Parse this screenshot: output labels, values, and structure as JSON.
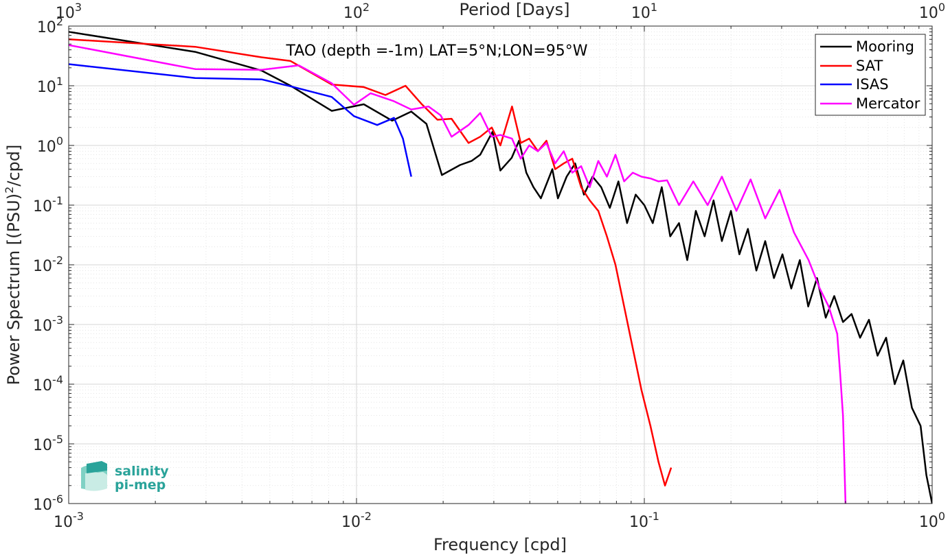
{
  "chart_data": {
    "type": "line",
    "title": "TAO (depth =-1m) LAT=5°N;LON=95°W",
    "xlabel": "Frequency [cpd]",
    "ylabel": "Power Spectrum [(PSU)²/cpd]",
    "ylabel_main": "Power Spectrum [(PSU)",
    "ylabel_sup": "2",
    "ylabel_end": "/cpd]",
    "top_xlabel": "Period [Days]",
    "xscale": "log",
    "yscale": "log",
    "xlim": [
      0.001,
      1
    ],
    "ylim": [
      1e-06,
      100
    ],
    "grid": true,
    "legend_position": "top-right",
    "x_ticks": [
      {
        "base": "10",
        "exp": "-3"
      },
      {
        "base": "10",
        "exp": "-2"
      },
      {
        "base": "10",
        "exp": "-1"
      },
      {
        "base": "10",
        "exp": "0"
      }
    ],
    "y_ticks": [
      {
        "base": "10",
        "exp": "-6"
      },
      {
        "base": "10",
        "exp": "-5"
      },
      {
        "base": "10",
        "exp": "-4"
      },
      {
        "base": "10",
        "exp": "-3"
      },
      {
        "base": "10",
        "exp": "-2"
      },
      {
        "base": "10",
        "exp": "-1"
      },
      {
        "base": "10",
        "exp": "0"
      },
      {
        "base": "10",
        "exp": "1"
      },
      {
        "base": "10",
        "exp": "2"
      }
    ],
    "top_ticks": [
      {
        "base": "10",
        "exp": "3"
      },
      {
        "base": "10",
        "exp": "2"
      },
      {
        "base": "10",
        "exp": "1"
      },
      {
        "base": "10",
        "exp": "0"
      }
    ],
    "series": [
      {
        "name": "Mooring",
        "color": "#000000",
        "points": [
          [
            0.001,
            80
          ],
          [
            0.00275,
            37
          ],
          [
            0.00468,
            18
          ],
          [
            0.0059,
            10
          ],
          [
            0.0082,
            3.8
          ],
          [
            0.0106,
            4.9
          ],
          [
            0.0133,
            2.6
          ],
          [
            0.0155,
            3.7
          ],
          [
            0.0175,
            2.3
          ],
          [
            0.0198,
            0.32
          ],
          [
            0.0229,
            0.47
          ],
          [
            0.0251,
            0.55
          ],
          [
            0.0269,
            0.7
          ],
          [
            0.0297,
            1.7
          ],
          [
            0.0316,
            0.38
          ],
          [
            0.0346,
            0.62
          ],
          [
            0.0367,
            1.2
          ],
          [
            0.0389,
            0.35
          ],
          [
            0.0412,
            0.2
          ],
          [
            0.0437,
            0.13
          ],
          [
            0.0479,
            0.4
          ],
          [
            0.0501,
            0.13
          ],
          [
            0.0537,
            0.3
          ],
          [
            0.0575,
            0.5
          ],
          [
            0.0617,
            0.15
          ],
          [
            0.0661,
            0.3
          ],
          [
            0.0708,
            0.2
          ],
          [
            0.0759,
            0.09
          ],
          [
            0.0813,
            0.25
          ],
          [
            0.0871,
            0.05
          ],
          [
            0.0933,
            0.15
          ],
          [
            0.1,
            0.1
          ],
          [
            0.107,
            0.05
          ],
          [
            0.115,
            0.2
          ],
          [
            0.123,
            0.03
          ],
          [
            0.132,
            0.05
          ],
          [
            0.141,
            0.012
          ],
          [
            0.151,
            0.08
          ],
          [
            0.162,
            0.03
          ],
          [
            0.174,
            0.12
          ],
          [
            0.186,
            0.025
          ],
          [
            0.2,
            0.08
          ],
          [
            0.214,
            0.015
          ],
          [
            0.229,
            0.04
          ],
          [
            0.245,
            0.008
          ],
          [
            0.263,
            0.025
          ],
          [
            0.282,
            0.006
          ],
          [
            0.302,
            0.015
          ],
          [
            0.324,
            0.004
          ],
          [
            0.347,
            0.012
          ],
          [
            0.371,
            0.002
          ],
          [
            0.398,
            0.006
          ],
          [
            0.427,
            0.0013
          ],
          [
            0.457,
            0.003
          ],
          [
            0.49,
            0.0011
          ],
          [
            0.525,
            0.0015
          ],
          [
            0.562,
            0.0006
          ],
          [
            0.603,
            0.0012
          ],
          [
            0.646,
            0.0003
          ],
          [
            0.692,
            0.0006
          ],
          [
            0.741,
            0.0001
          ],
          [
            0.794,
            0.00025
          ],
          [
            0.851,
            4e-05
          ],
          [
            0.912,
            2e-05
          ],
          [
            0.955,
            3e-06
          ],
          [
            1.0,
            1e-06
          ]
        ]
      },
      {
        "name": "SAT",
        "color": "#ff0000",
        "points": [
          [
            0.001,
            60
          ],
          [
            0.00275,
            45
          ],
          [
            0.00468,
            30
          ],
          [
            0.0059,
            26
          ],
          [
            0.0082,
            10.5
          ],
          [
            0.0106,
            9.5
          ],
          [
            0.0126,
            7
          ],
          [
            0.0148,
            10
          ],
          [
            0.0168,
            5
          ],
          [
            0.0191,
            2.7
          ],
          [
            0.0214,
            2.8
          ],
          [
            0.0245,
            1.1
          ],
          [
            0.0269,
            1.4
          ],
          [
            0.0295,
            2.0
          ],
          [
            0.0316,
            1.0
          ],
          [
            0.0347,
            4.5
          ],
          [
            0.0372,
            1.1
          ],
          [
            0.0398,
            1.3
          ],
          [
            0.0427,
            0.8
          ],
          [
            0.0457,
            1.2
          ],
          [
            0.049,
            0.4
          ],
          [
            0.0525,
            0.5
          ],
          [
            0.0562,
            0.6
          ],
          [
            0.0603,
            0.2
          ],
          [
            0.0646,
            0.12
          ],
          [
            0.0692,
            0.08
          ],
          [
            0.0741,
            0.03
          ],
          [
            0.0794,
            0.01
          ],
          [
            0.0851,
            0.002
          ],
          [
            0.0912,
            0.0004
          ],
          [
            0.0977,
            8e-05
          ],
          [
            0.105,
            2e-05
          ],
          [
            0.112,
            5e-06
          ],
          [
            0.118,
            2e-06
          ],
          [
            0.124,
            4e-06
          ]
        ]
      },
      {
        "name": "ISAS",
        "color": "#0000ff",
        "points": [
          [
            0.001,
            23
          ],
          [
            0.00275,
            13.5
          ],
          [
            0.00468,
            12.8
          ],
          [
            0.0059,
            9.8
          ],
          [
            0.0082,
            6.5
          ],
          [
            0.0098,
            3.1
          ],
          [
            0.0118,
            2.2
          ],
          [
            0.0135,
            2.9
          ],
          [
            0.0145,
            1.3
          ],
          [
            0.0155,
            0.3
          ]
        ]
      },
      {
        "name": "Mercator",
        "color": "#ff00ff",
        "points": [
          [
            0.001,
            48
          ],
          [
            0.00275,
            19
          ],
          [
            0.00468,
            18.5
          ],
          [
            0.0063,
            22
          ],
          [
            0.0082,
            11
          ],
          [
            0.0098,
            4.8
          ],
          [
            0.0112,
            7.5
          ],
          [
            0.0135,
            5.5
          ],
          [
            0.0155,
            4
          ],
          [
            0.0178,
            4.5
          ],
          [
            0.0196,
            3.2
          ],
          [
            0.0214,
            1.4
          ],
          [
            0.0245,
            2.2
          ],
          [
            0.0269,
            3.5
          ],
          [
            0.0295,
            1.4
          ],
          [
            0.0316,
            1.5
          ],
          [
            0.0347,
            1.3
          ],
          [
            0.0372,
            0.6
          ],
          [
            0.0398,
            1.0
          ],
          [
            0.0427,
            0.8
          ],
          [
            0.0457,
            1.1
          ],
          [
            0.049,
            0.5
          ],
          [
            0.0525,
            0.8
          ],
          [
            0.0562,
            0.35
          ],
          [
            0.0603,
            0.45
          ],
          [
            0.0646,
            0.2
          ],
          [
            0.0692,
            0.55
          ],
          [
            0.0741,
            0.3
          ],
          [
            0.0794,
            0.7
          ],
          [
            0.0851,
            0.25
          ],
          [
            0.0912,
            0.35
          ],
          [
            0.0977,
            0.3
          ],
          [
            0.105,
            0.28
          ],
          [
            0.112,
            0.25
          ],
          [
            0.12,
            0.26
          ],
          [
            0.132,
            0.1
          ],
          [
            0.148,
            0.25
          ],
          [
            0.166,
            0.1
          ],
          [
            0.186,
            0.3
          ],
          [
            0.209,
            0.08
          ],
          [
            0.234,
            0.27
          ],
          [
            0.263,
            0.06
          ],
          [
            0.295,
            0.18
          ],
          [
            0.331,
            0.035
          ],
          [
            0.372,
            0.012
          ],
          [
            0.407,
            0.004
          ],
          [
            0.437,
            0.002
          ],
          [
            0.468,
            0.0007
          ],
          [
            0.479,
            0.00015
          ],
          [
            0.49,
            3e-05
          ],
          [
            0.5,
            1e-06
          ]
        ]
      }
    ]
  },
  "logo": {
    "line1": "salinity",
    "line2": "pi-mep"
  }
}
